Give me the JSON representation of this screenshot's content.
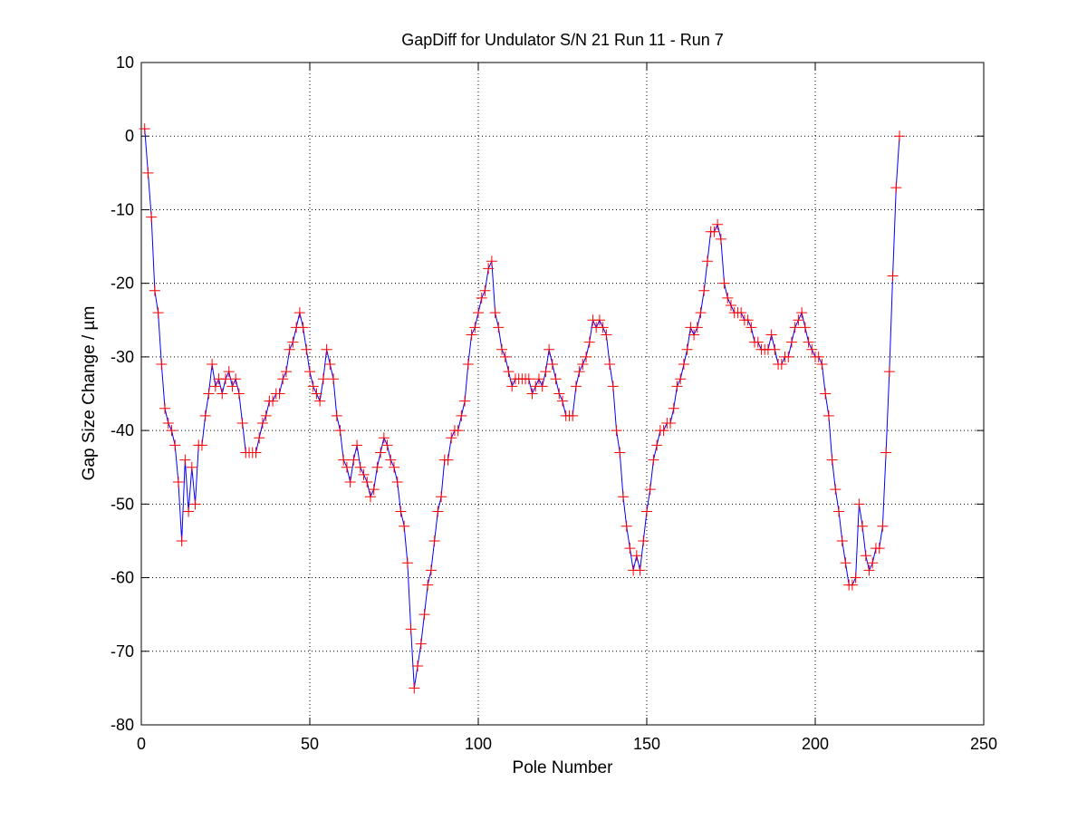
{
  "chart_data": {
    "type": "line",
    "title": "GapDiff  for Undulator S/N 21 Run 11 - Run 7",
    "x_label": "Pole Number",
    "y_label": "Gap Size Change / µm",
    "x": [
      1,
      2,
      3,
      4,
      5,
      6,
      7,
      8,
      9,
      10,
      11,
      12,
      13,
      14,
      15,
      16,
      17,
      18,
      19,
      20,
      21,
      22,
      23,
      24,
      25,
      26,
      27,
      28,
      29,
      30,
      31,
      32,
      33,
      34,
      35,
      36,
      37,
      38,
      39,
      40,
      41,
      42,
      43,
      44,
      45,
      46,
      47,
      48,
      49,
      50,
      51,
      52,
      53,
      54,
      55,
      56,
      57,
      58,
      59,
      60,
      61,
      62,
      63,
      64,
      65,
      66,
      67,
      68,
      69,
      70,
      71,
      72,
      73,
      74,
      75,
      76,
      77,
      78,
      79,
      80,
      81,
      82,
      83,
      84,
      85,
      86,
      87,
      88,
      89,
      90,
      91,
      92,
      93,
      94,
      95,
      96,
      97,
      98,
      99,
      100,
      101,
      102,
      103,
      104,
      105,
      106,
      107,
      108,
      109,
      110,
      111,
      112,
      113,
      114,
      115,
      116,
      117,
      118,
      119,
      120,
      121,
      122,
      123,
      124,
      125,
      126,
      127,
      128,
      129,
      130,
      131,
      132,
      133,
      134,
      135,
      136,
      137,
      138,
      139,
      140,
      141,
      142,
      143,
      144,
      145,
      146,
      147,
      148,
      149,
      150,
      151,
      152,
      153,
      154,
      155,
      156,
      157,
      158,
      159,
      160,
      161,
      162,
      163,
      164,
      165,
      166,
      167,
      168,
      169,
      170,
      171,
      172,
      173,
      174,
      175,
      176,
      177,
      178,
      179,
      180,
      181,
      182,
      183,
      184,
      185,
      186,
      187,
      188,
      189,
      190,
      191,
      192,
      193,
      194,
      195,
      196,
      197,
      198,
      199,
      200,
      201,
      202,
      203,
      204,
      205,
      206,
      207,
      208,
      209,
      210,
      211,
      212,
      213,
      214,
      215,
      216,
      217,
      218,
      219,
      220,
      221,
      222,
      223,
      224,
      225
    ],
    "values": [
      1,
      -5,
      -11,
      -21,
      -24,
      -31,
      -37,
      -39,
      -40,
      -42,
      -47,
      -55,
      -44,
      -51,
      -45,
      -50,
      -42,
      -42,
      -38,
      -35,
      -31,
      -34,
      -33,
      -35,
      -33,
      -32,
      -34,
      -33,
      -35,
      -39,
      -43,
      -43,
      -43,
      -43,
      -41,
      -39,
      -38,
      -36,
      -36,
      -35,
      -35,
      -33,
      -32,
      -29,
      -28,
      -26,
      -24,
      -26,
      -29,
      -32,
      -34,
      -35,
      -36,
      -33,
      -29,
      -31,
      -33,
      -38,
      -40,
      -44,
      -45,
      -47,
      -44,
      -42,
      -45,
      -46,
      -47,
      -49,
      -48,
      -45,
      -43,
      -41,
      -42,
      -44,
      -45,
      -47,
      -51,
      -53,
      -58,
      -67,
      -75,
      -72,
      -69,
      -65,
      -61,
      -59,
      -55,
      -51,
      -49,
      -44,
      -44,
      -41,
      -40,
      -40,
      -38,
      -36,
      -31,
      -27,
      -26,
      -24,
      -22,
      -21,
      -18,
      -17,
      -24,
      -26,
      -29,
      -30,
      -32,
      -34,
      -33,
      -33,
      -33,
      -33,
      -33,
      -35,
      -34,
      -33,
      -34,
      -32,
      -29,
      -31,
      -33,
      -35,
      -36,
      -38,
      -38,
      -38,
      -34,
      -32,
      -31,
      -30,
      -28,
      -25,
      -26,
      -25,
      -26,
      -27,
      -31,
      -34,
      -40,
      -43,
      -49,
      -53,
      -56,
      -59,
      -57,
      -59,
      -55,
      -51,
      -48,
      -44,
      -42,
      -40,
      -40,
      -39,
      -39,
      -37,
      -34,
      -33,
      -31,
      -29,
      -26,
      -27,
      -26,
      -24,
      -21,
      -17,
      -13,
      -13,
      -12,
      -14,
      -20,
      -22,
      -23,
      -24,
      -24,
      -24,
      -25,
      -25,
      -26,
      -28,
      -28,
      -29,
      -29,
      -29,
      -27,
      -29,
      -31,
      -31,
      -30,
      -30,
      -28,
      -26,
      -25,
      -24,
      -26,
      -28,
      -29,
      -30,
      -30,
      -31,
      -35,
      -38,
      -44,
      -48,
      -51,
      -55,
      -58,
      -61,
      -61,
      -60,
      -50,
      -53,
      -57,
      -59,
      -58,
      -56,
      -56,
      -53,
      -43,
      -32,
      -19,
      -7,
      0
    ],
    "color": "#0000ff",
    "marker_color": "#ff0000",
    "xlim": [
      0,
      250
    ],
    "xticks": [
      0,
      50,
      100,
      150,
      200,
      250
    ],
    "ylim": [
      -80,
      10
    ],
    "yticks": [
      10,
      0,
      -10,
      -20,
      -30,
      -40,
      -50,
      -60,
      -70,
      -80
    ],
    "grid": true
  }
}
